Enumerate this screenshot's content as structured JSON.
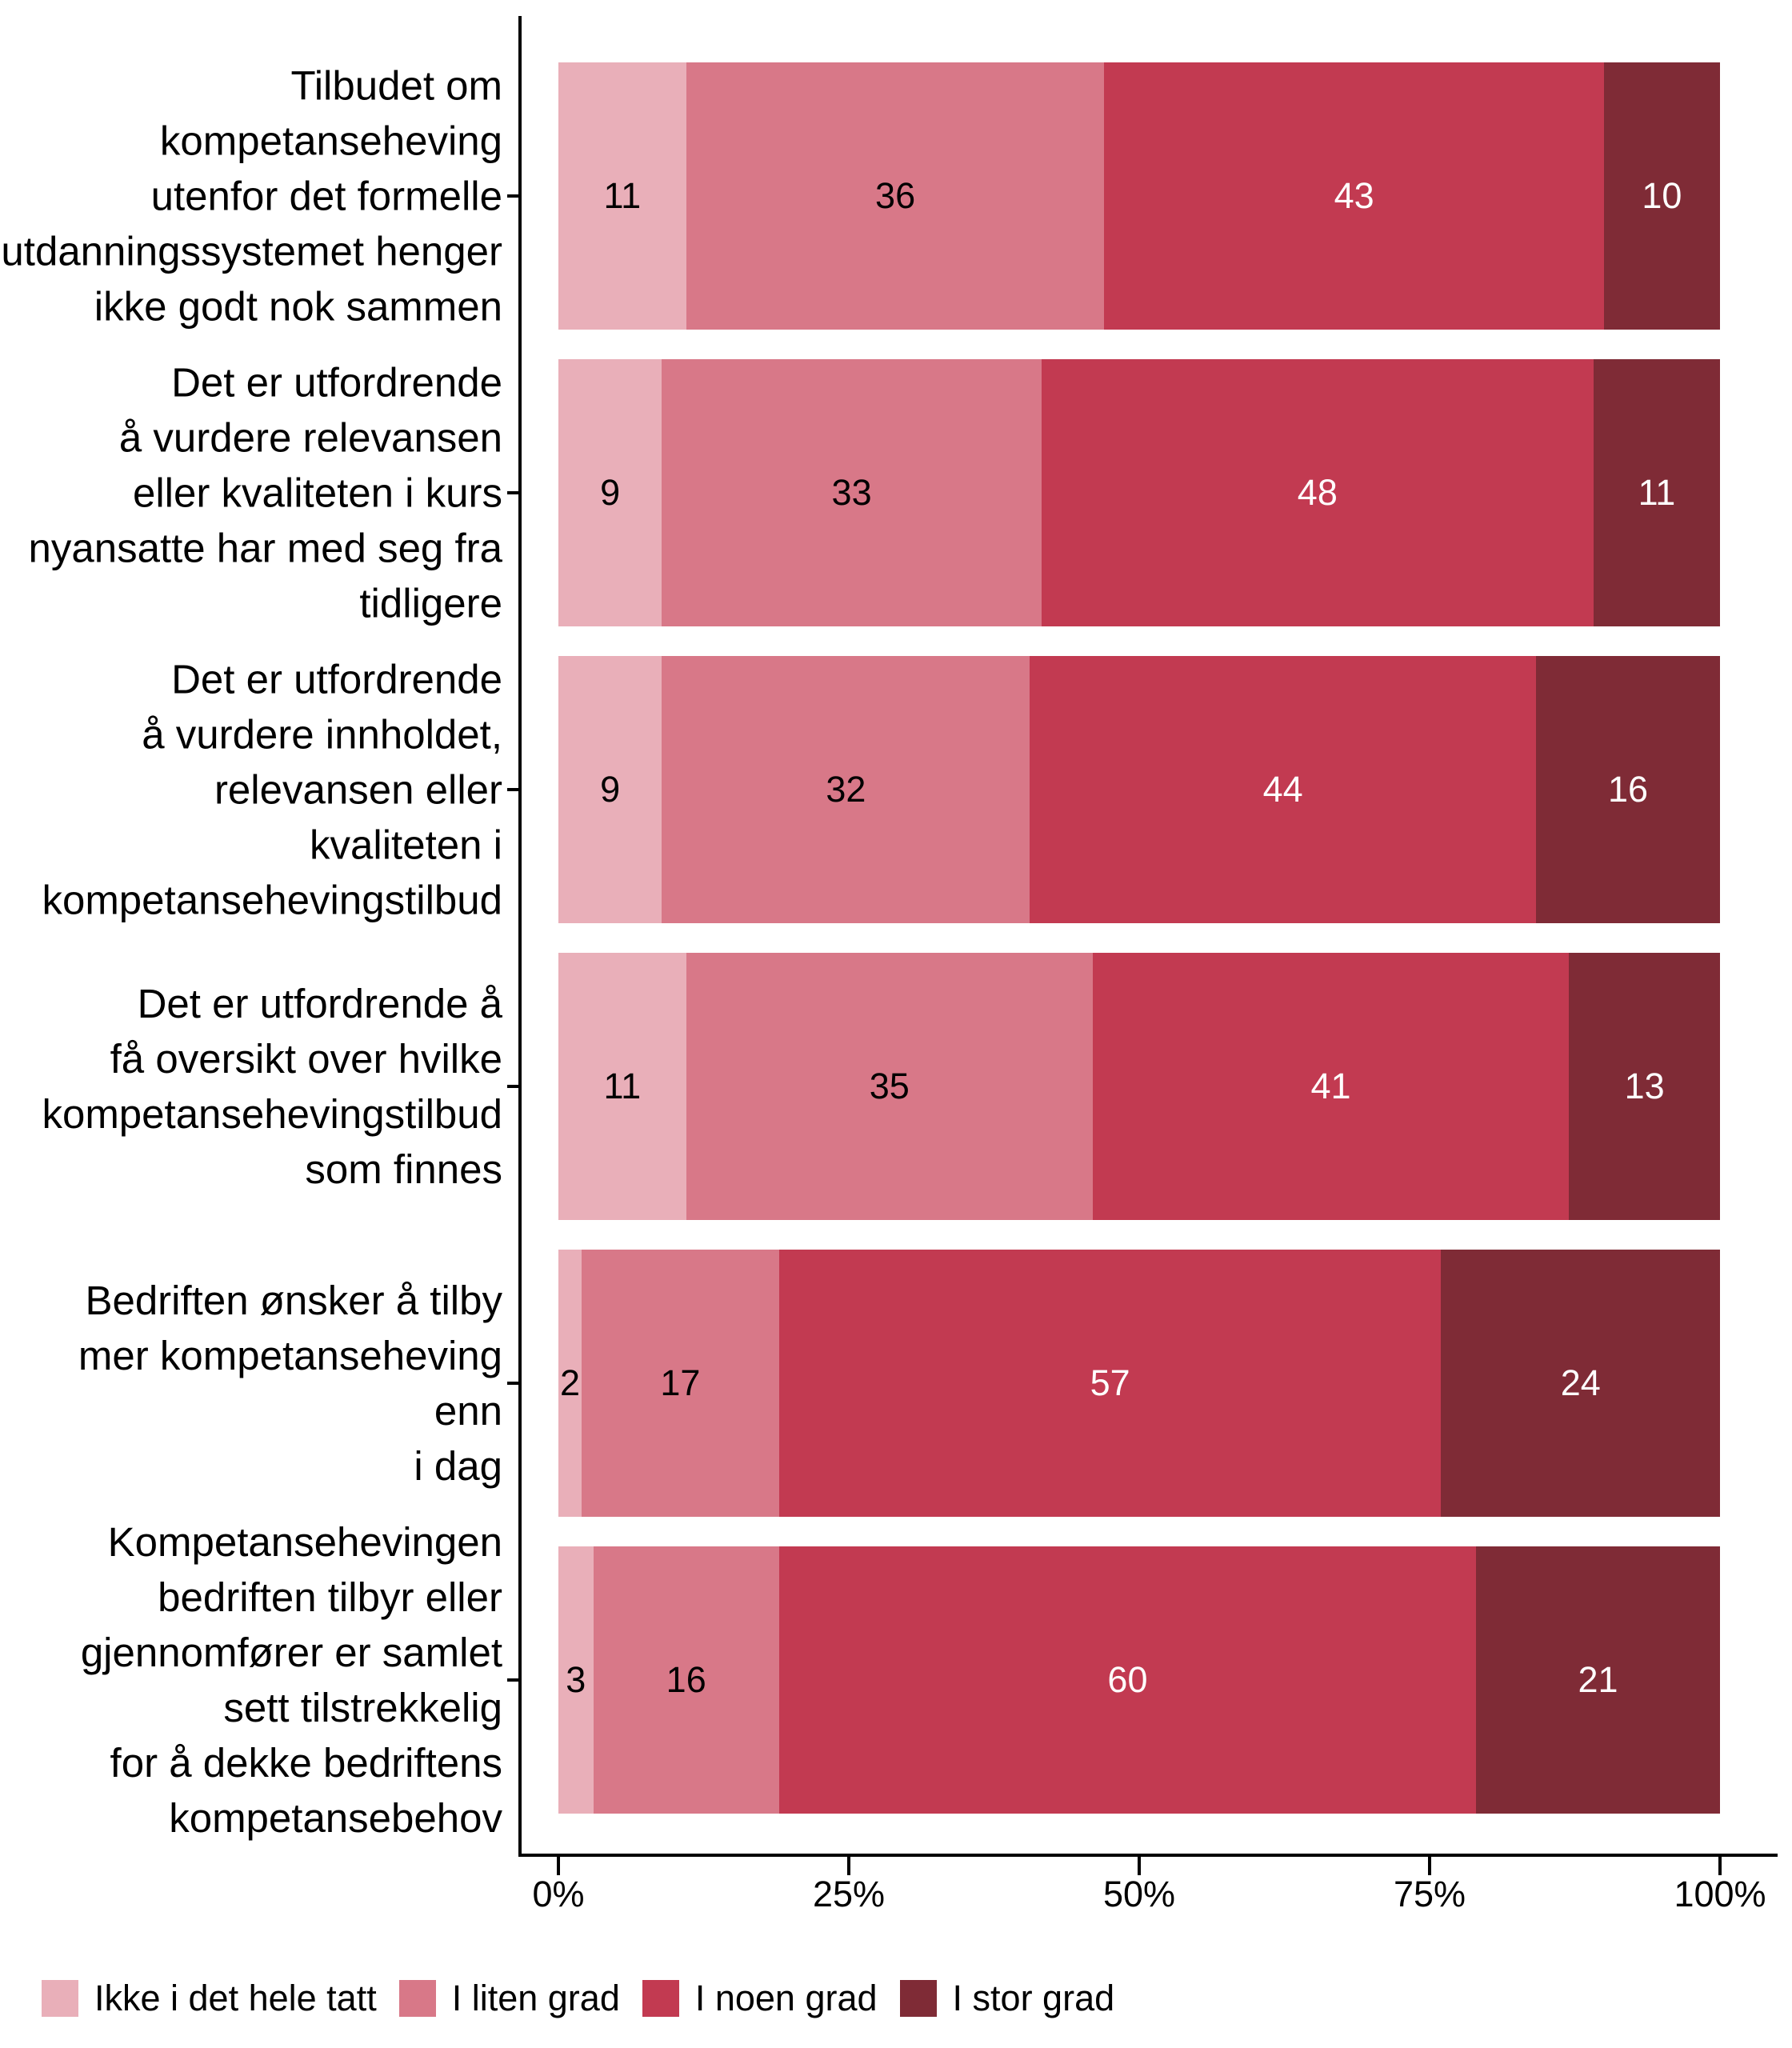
{
  "chart_data": {
    "type": "bar",
    "orientation": "horizontal",
    "stacked": true,
    "title": "",
    "unit_suffix": "%",
    "grid": false,
    "background": "#FFFFFF",
    "axis_color": "#000000",
    "categories": [
      "Tilbudet om\nkompetanseheving\nutenfor det formelle\nutdanningssystemet henger\nikke godt nok sammen",
      "Det er utfordrende\nå vurdere relevansen\neller kvaliteten i kurs\nnyansatte har med seg fra\ntidligere",
      "Det er utfordrende\nå vurdere innholdet,\nrelevansen eller\nkvaliteten i\nkompetansehevingstilbud",
      "Det er utfordrende å\nfå oversikt over hvilke\nkompetansehevingstilbud\nsom finnes",
      "Bedriften ønsker å tilby\nmer kompetanseheving enn\ni dag",
      "Kompetansehevingen\nbedriften tilbyr eller\ngjennomfører er samlet\nsett tilstrekkelig\nfor å dekke bedriftens\nkompetansebehov"
    ],
    "series": [
      {
        "name": "Ikke i det hele tatt",
        "color": "#E9AFB9",
        "text_color": "#000000",
        "values": [
          11,
          9,
          9,
          11,
          2,
          3
        ]
      },
      {
        "name": "I liten grad",
        "color": "#D87888",
        "text_color": "#000000",
        "values": [
          36,
          33,
          32,
          35,
          17,
          16
        ]
      },
      {
        "name": "I noen grad",
        "color": "#C23A51",
        "text_color": "#FFFFFF",
        "values": [
          43,
          48,
          44,
          41,
          57,
          60
        ]
      },
      {
        "name": "I stor grad",
        "color": "#7F2B36",
        "text_color": "#FFFFFF",
        "values": [
          10,
          11,
          16,
          13,
          24,
          21
        ]
      }
    ],
    "x_axis": {
      "ticks": [
        "0%",
        "25%",
        "50%",
        "75%",
        "100%"
      ],
      "range": [
        0,
        100
      ]
    },
    "legend_position": "bottom"
  }
}
